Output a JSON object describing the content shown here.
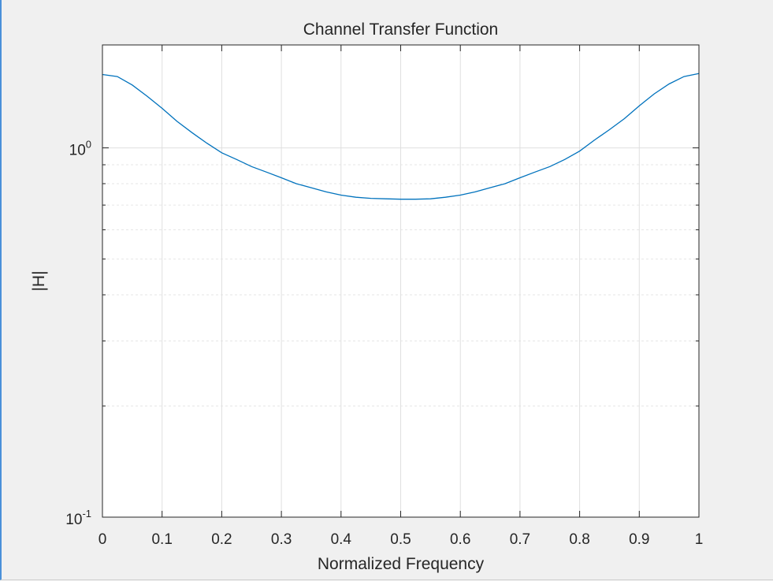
{
  "chart_data": {
    "type": "line",
    "title": "Channel Transfer Function",
    "xlabel": "Normalized Frequency",
    "ylabel": "|H|",
    "xlim": [
      0,
      1
    ],
    "ylim": [
      0.1,
      1.9
    ],
    "y_scale": "log",
    "grid": true,
    "x_ticks": [
      "0",
      "0.1",
      "0.2",
      "0.3",
      "0.4",
      "0.5",
      "0.6",
      "0.7",
      "0.8",
      "0.9",
      "1"
    ],
    "y_ticks": [
      {
        "value": 0.1,
        "base": "10",
        "exp": "-1"
      },
      {
        "value": 1,
        "base": "10",
        "exp": "0"
      }
    ],
    "line_color": "#0072bd",
    "series": [
      {
        "x": [
          0,
          0.025,
          0.05,
          0.075,
          0.1,
          0.125,
          0.15,
          0.175,
          0.2,
          0.225,
          0.25,
          0.275,
          0.3,
          0.325,
          0.35,
          0.375,
          0.4,
          0.425,
          0.45,
          0.475,
          0.5,
          0.525,
          0.55,
          0.575,
          0.6,
          0.625,
          0.65,
          0.675,
          0.7,
          0.725,
          0.75,
          0.775,
          0.8,
          0.825,
          0.85,
          0.875,
          0.9,
          0.925,
          0.95,
          0.975,
          1
        ],
        "y": [
          1.58,
          1.56,
          1.48,
          1.38,
          1.28,
          1.18,
          1.1,
          1.03,
          0.97,
          0.93,
          0.89,
          0.86,
          0.83,
          0.8,
          0.78,
          0.76,
          0.745,
          0.735,
          0.73,
          0.728,
          0.726,
          0.726,
          0.728,
          0.735,
          0.745,
          0.76,
          0.78,
          0.8,
          0.83,
          0.86,
          0.89,
          0.93,
          0.98,
          1.05,
          1.12,
          1.2,
          1.3,
          1.4,
          1.49,
          1.56,
          1.59
        ]
      }
    ]
  }
}
